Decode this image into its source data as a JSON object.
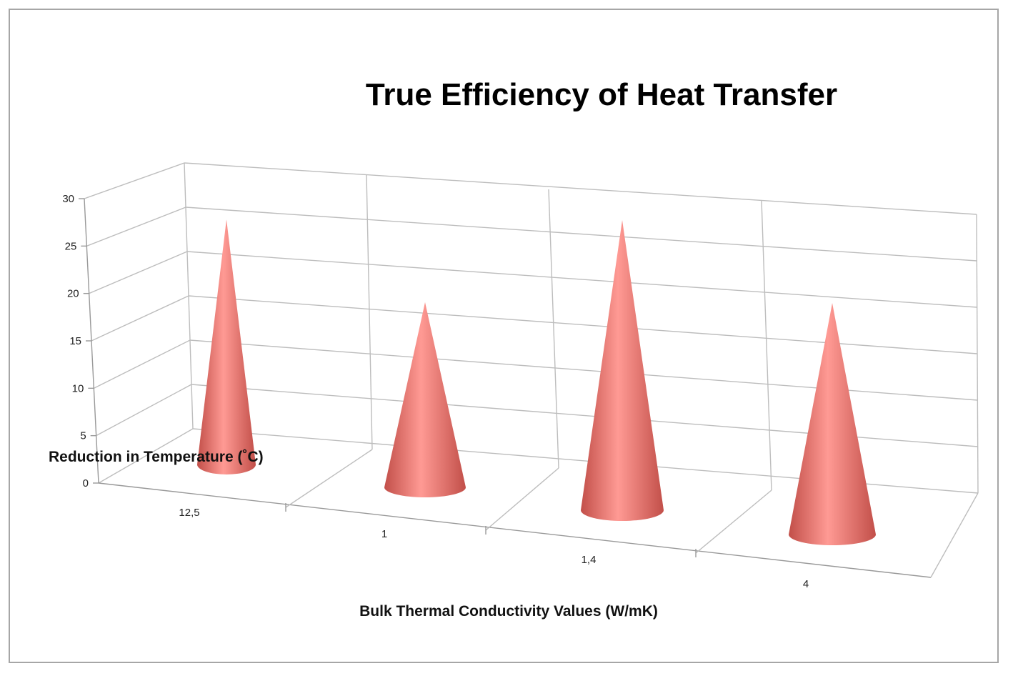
{
  "chart_data": {
    "type": "bar",
    "bar_shape": "3d-cone",
    "title": "True Efficiency of Heat Transfer",
    "xlabel": "Bulk Thermal Conductivity Values (W/mK)",
    "ylabel": "Reduction in Temperature (˚C)",
    "categories": [
      "12,5",
      "1",
      "1,4",
      "4"
    ],
    "values": [
      27,
      20,
      29,
      24
    ],
    "ylim": [
      0,
      30
    ],
    "yticks": [
      "0",
      "5",
      "10",
      "15",
      "20",
      "25",
      "30"
    ],
    "grid": true,
    "legend": "none",
    "colors": {
      "cone": "#e8736c",
      "cone_light": "#ff9a94",
      "cone_dark": "#c24f49",
      "grid": "#bdbdbd"
    }
  }
}
